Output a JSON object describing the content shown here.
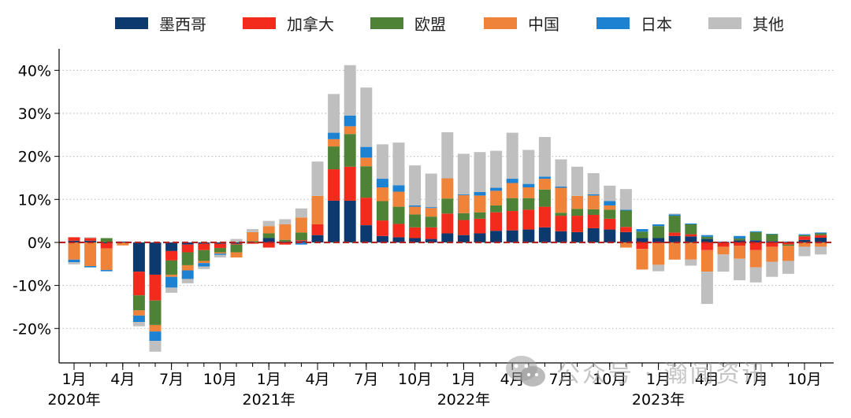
{
  "legend": [
    {
      "name": "墨西哥",
      "color": "#0d3a6e"
    },
    {
      "name": "加拿大",
      "color": "#f22b1d"
    },
    {
      "name": "欧盟",
      "color": "#4e8236"
    },
    {
      "name": "中国",
      "color": "#f0833a"
    },
    {
      "name": "日本",
      "color": "#1c82d1"
    },
    {
      "name": "其他",
      "color": "#bfbfbf"
    }
  ],
  "watermark": {
    "text": "公众号 · 瀚闻资讯",
    "icon": "wechat-icon"
  },
  "chart_data": {
    "type": "bar",
    "stacked": true,
    "ylim": [
      -0.28,
      0.45
    ],
    "y_ticks": [
      -0.2,
      -0.1,
      0,
      0.1,
      0.2,
      0.3,
      0.4
    ],
    "y_tick_labels": [
      "-20%",
      "-10%",
      "0%",
      "10%",
      "20%",
      "30%",
      "40%"
    ],
    "x_tick_labels": [
      {
        "index": 0,
        "month": "1月",
        "year": "2020年"
      },
      {
        "index": 3,
        "month": "4月"
      },
      {
        "index": 6,
        "month": "7月"
      },
      {
        "index": 9,
        "month": "10月"
      },
      {
        "index": 12,
        "month": "1月",
        "year": "2021年"
      },
      {
        "index": 15,
        "month": "4月"
      },
      {
        "index": 18,
        "month": "7月"
      },
      {
        "index": 21,
        "month": "10月"
      },
      {
        "index": 24,
        "month": "1月",
        "year": "2022年"
      },
      {
        "index": 27,
        "month": "4月"
      },
      {
        "index": 30,
        "month": "7月"
      },
      {
        "index": 33,
        "month": "10月"
      },
      {
        "index": 36,
        "month": "1月",
        "year": "2023年"
      },
      {
        "index": 39,
        "month": "4月"
      },
      {
        "index": 42,
        "month": "7月"
      },
      {
        "index": 45,
        "month": "10月"
      }
    ],
    "grid": "horizontal-dotted",
    "zero_line_color": "#b22222",
    "series": [
      {
        "name": "墨西哥",
        "color": "#0d3a6e",
        "values": [
          0.004,
          0.004,
          -0.002,
          0.002,
          -0.068,
          -0.075,
          -0.02,
          -0.005,
          -0.003,
          -0.003,
          -0.003,
          0,
          0.01,
          0.002,
          0.003,
          0.017,
          0.097,
          0.097,
          0.04,
          0.015,
          0.012,
          0.01,
          0.008,
          0.021,
          0.017,
          0.021,
          0.027,
          0.028,
          0.03,
          0.035,
          0.026,
          0.024,
          0.033,
          0.03,
          0.024,
          0.01,
          0.01,
          0.015,
          0.014,
          0.008,
          0.001,
          0.005,
          0.005,
          0.003,
          0.001,
          0.006,
          0.011
        ]
      },
      {
        "name": "加拿大",
        "color": "#f22b1d",
        "values": [
          0.008,
          0.006,
          -0.012,
          0,
          -0.055,
          -0.06,
          -0.022,
          -0.018,
          -0.015,
          -0.01,
          -0.002,
          -0.003,
          -0.012,
          -0.005,
          0.002,
          0.025,
          0.073,
          0.079,
          0.064,
          0.036,
          0.031,
          0.025,
          0.027,
          0.046,
          0.035,
          0.034,
          0.043,
          0.045,
          0.046,
          0.048,
          0.036,
          0.038,
          0.031,
          0.025,
          0.012,
          -0.015,
          -0.002,
          0.008,
          0.005,
          -0.018,
          -0.01,
          -0.008,
          -0.018,
          -0.01,
          -0.005,
          0.008,
          0.006
        ]
      },
      {
        "name": "欧盟",
        "color": "#4e8236",
        "values": [
          0,
          0,
          0.01,
          0,
          -0.035,
          -0.057,
          -0.033,
          -0.03,
          -0.025,
          -0.01,
          -0.018,
          0.003,
          0.011,
          0.004,
          0.018,
          0,
          0.053,
          0.076,
          0.073,
          0.045,
          0.04,
          0.03,
          0.025,
          0.035,
          0.016,
          0.015,
          0.016,
          0.03,
          0.027,
          0.04,
          0.007,
          0.016,
          0.013,
          0.021,
          0.038,
          0.015,
          0.028,
          0.039,
          0.023,
          0.005,
          0,
          0.004,
          0.019,
          0.016,
          -0.003,
          0.003,
          0.004
        ]
      },
      {
        "name": "中国",
        "color": "#f0833a",
        "values": [
          -0.04,
          -0.055,
          -0.05,
          -0.007,
          -0.012,
          -0.015,
          -0.005,
          -0.012,
          -0.005,
          -0.003,
          -0.012,
          0.021,
          0.017,
          0.036,
          0.035,
          0.066,
          0.017,
          0.018,
          0.02,
          0.032,
          0.035,
          0.018,
          0.02,
          0.047,
          0.042,
          0.039,
          0.034,
          0.035,
          0.025,
          0.025,
          0.058,
          0.03,
          0.032,
          0.01,
          -0.012,
          -0.048,
          -0.05,
          -0.04,
          -0.04,
          -0.05,
          -0.018,
          -0.03,
          -0.04,
          -0.035,
          -0.035,
          -0.01,
          -0.01
        ]
      },
      {
        "name": "日本",
        "color": "#1c82d1",
        "values": [
          -0.006,
          -0.003,
          -0.003,
          0,
          -0.015,
          -0.022,
          -0.025,
          -0.02,
          -0.008,
          -0.003,
          0,
          0,
          0,
          0,
          -0.005,
          0,
          0.015,
          0.025,
          0.025,
          0.02,
          0.015,
          0.003,
          0.002,
          0,
          0.002,
          0.008,
          0.007,
          0.01,
          0.008,
          0.005,
          0.003,
          0,
          0.003,
          0.01,
          0.002,
          0.006,
          0.004,
          0.003,
          0.002,
          0.004,
          0.001,
          0.006,
          0.002,
          0.001,
          0.001,
          0.002,
          0.002
        ]
      },
      {
        "name": "其他",
        "color": "#bfbfbf",
        "values": [
          -0.005,
          0.002,
          0,
          0,
          -0.01,
          -0.025,
          -0.012,
          -0.01,
          -0.006,
          -0.006,
          0.008,
          0.007,
          0.012,
          0.012,
          0.021,
          0.08,
          0.09,
          0.117,
          0.138,
          0.08,
          0.099,
          0.093,
          0.078,
          0.107,
          0.094,
          0.093,
          0.086,
          0.107,
          0.079,
          0.092,
          0.063,
          0.068,
          0.049,
          0.036,
          0.048,
          0,
          -0.015,
          0.002,
          -0.014,
          -0.075,
          -0.04,
          -0.05,
          -0.035,
          -0.035,
          -0.03,
          -0.022,
          -0.018
        ]
      }
    ]
  }
}
